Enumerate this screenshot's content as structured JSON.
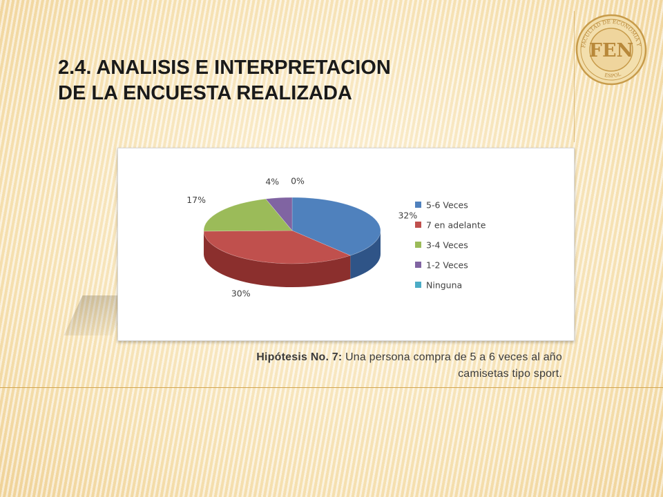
{
  "slide": {
    "title_line1": "2.4. ANALISIS E INTERPRETACION",
    "title_line2": "DE LA ENCUESTA REALIZADA",
    "logo": {
      "text_main": "FEN",
      "text_ring": "FACULTAD DE ECONOMIA Y NEGOCIOS",
      "text_bottom": "ESPOL",
      "color": "#c79b4a"
    },
    "caption": {
      "label": "Hipótesis No. 7:",
      "line1": " Una persona compra de 5 a 6 veces al año",
      "line2": "camisetas tipo sport."
    }
  },
  "chart_data": {
    "type": "pie",
    "title": "",
    "categories": [
      "5-6 Veces",
      "7 en adelante",
      "3-4 Veces",
      "1-2 Veces",
      "Ninguna"
    ],
    "values": [
      32,
      30,
      17,
      4,
      0
    ],
    "labels": [
      "32%",
      "30%",
      "17%",
      "4%",
      "0%"
    ],
    "colors": [
      "#4f81bd",
      "#c0504d",
      "#9bbb59",
      "#8064a2",
      "#4bacc6"
    ],
    "side_colors": [
      "#2f5487",
      "#8b2f2d",
      "#6c8a3a",
      "#5a4478",
      "#2e8098"
    ],
    "legend_position": "right",
    "three_d": true
  }
}
